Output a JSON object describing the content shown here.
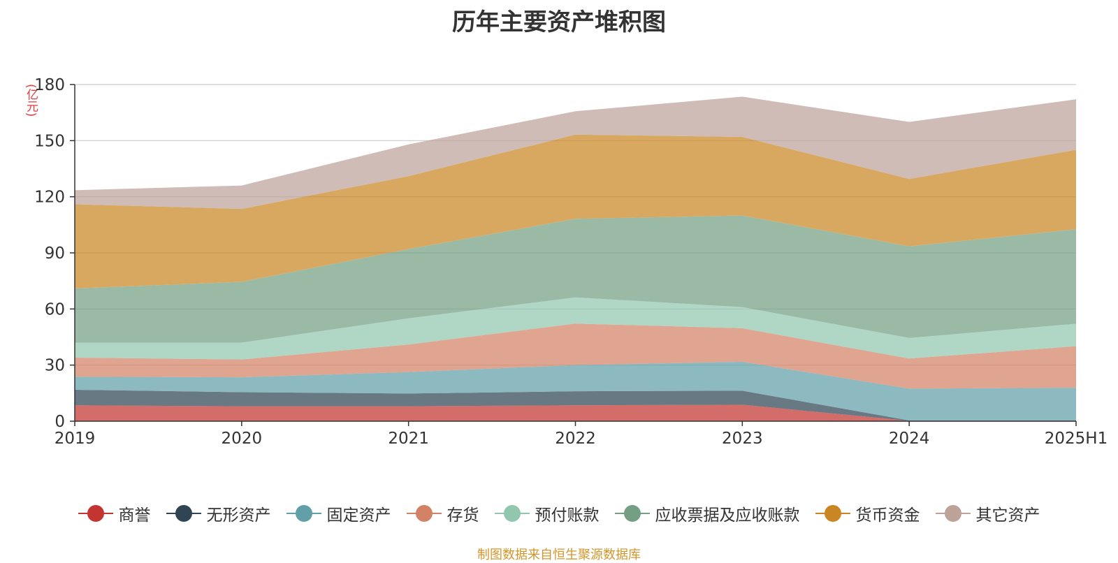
{
  "title": "历年主要资产堆积图",
  "unit_label": "(亿元)",
  "source": "制图数据来自恒生聚源数据库",
  "chart_data": {
    "type": "area",
    "stacked": true,
    "title": "历年主要资产堆积图",
    "ylabel": "(亿元)",
    "ylim": [
      0,
      180
    ],
    "yticks": [
      0,
      30,
      60,
      90,
      120,
      150,
      180
    ],
    "grid": true,
    "legend_position": "bottom",
    "categories": [
      "2019",
      "2020",
      "2021",
      "2022",
      "2023",
      "2024",
      "2025H1"
    ],
    "series": [
      {
        "name": "商誉",
        "color": "#c23531",
        "values": [
          8.5,
          8.0,
          8.0,
          8.5,
          8.8,
          0.2,
          0.2
        ]
      },
      {
        "name": "无形资产",
        "color": "#2f4554",
        "values": [
          8.3,
          7.5,
          6.8,
          7.5,
          7.5,
          0.2,
          0.2
        ]
      },
      {
        "name": "固定资产",
        "color": "#61a0a8",
        "values": [
          7.0,
          8.0,
          11.5,
          14.0,
          15.5,
          17.0,
          17.5
        ]
      },
      {
        "name": "存货",
        "color": "#d48265",
        "values": [
          10.2,
          9.5,
          14.7,
          22.2,
          17.9,
          16.1,
          22.2
        ]
      },
      {
        "name": "预付账款",
        "color": "#91c7ae",
        "values": [
          8.0,
          9.0,
          14.0,
          14.0,
          11.3,
          11.0,
          12.0
        ]
      },
      {
        "name": "应收票据及应收账款",
        "color": "#749f83",
        "values": [
          29.0,
          32.5,
          37.0,
          42.0,
          49.0,
          49.0,
          50.5
        ]
      },
      {
        "name": "货币资金",
        "color": "#ca8622",
        "values": [
          45.0,
          39.0,
          39.0,
          45.0,
          42.0,
          36.0,
          42.5
        ]
      },
      {
        "name": "其它资产",
        "color": "#bda29a",
        "values": [
          7.5,
          12.5,
          17.0,
          12.5,
          21.5,
          30.5,
          27.0
        ]
      }
    ]
  }
}
